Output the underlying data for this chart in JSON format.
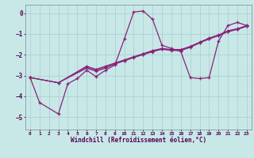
{
  "xlabel": "Windchill (Refroidissement éolien,°C)",
  "bg_color": "#c8e8e8",
  "grid_color": "#a8cccc",
  "line_color": "#882277",
  "xlim": [
    -0.5,
    23.5
  ],
  "ylim": [
    -5.6,
    0.4
  ],
  "yticks": [
    0,
    -1,
    -2,
    -3,
    -4,
    -5
  ],
  "xticks": [
    0,
    1,
    2,
    3,
    4,
    5,
    6,
    7,
    8,
    9,
    10,
    11,
    12,
    13,
    14,
    15,
    16,
    17,
    18,
    19,
    20,
    21,
    22,
    23
  ],
  "line1_x": [
    0,
    1,
    3,
    4,
    5,
    6,
    7,
    8,
    9,
    10,
    11,
    12,
    13,
    14,
    15,
    16,
    17,
    18,
    19,
    20,
    21,
    22,
    23
  ],
  "line1_y": [
    -3.1,
    -4.3,
    -4.85,
    -3.4,
    -3.15,
    -2.75,
    -3.05,
    -2.75,
    -2.5,
    -1.25,
    0.05,
    0.1,
    -0.3,
    -1.55,
    -1.7,
    -1.85,
    -3.1,
    -3.15,
    -3.1,
    -1.35,
    -0.6,
    -0.45,
    -0.6
  ],
  "line2_x": [
    0,
    3,
    6,
    7,
    8,
    9,
    10,
    11,
    12,
    13,
    14,
    15,
    16,
    17,
    18,
    19,
    20,
    21,
    22,
    23
  ],
  "line2_y": [
    -3.1,
    -3.35,
    -2.55,
    -2.7,
    -2.55,
    -2.4,
    -2.25,
    -2.1,
    -1.95,
    -1.8,
    -1.7,
    -1.75,
    -1.75,
    -1.6,
    -1.4,
    -1.2,
    -1.05,
    -0.85,
    -0.75,
    -0.6
  ],
  "line3_x": [
    0,
    3,
    6,
    7,
    8,
    9,
    10,
    11,
    12,
    13,
    14,
    15,
    16,
    17,
    18,
    19,
    20,
    21,
    22,
    23
  ],
  "line3_y": [
    -3.1,
    -3.35,
    -2.6,
    -2.75,
    -2.6,
    -2.42,
    -2.28,
    -2.12,
    -1.98,
    -1.83,
    -1.72,
    -1.78,
    -1.78,
    -1.62,
    -1.42,
    -1.22,
    -1.07,
    -0.88,
    -0.77,
    -0.62
  ],
  "line4_x": [
    0,
    3,
    6,
    7,
    8,
    9,
    10,
    11,
    12,
    13,
    14,
    15,
    16,
    17,
    18,
    19,
    20,
    21,
    22,
    23
  ],
  "line4_y": [
    -3.1,
    -3.35,
    -2.65,
    -2.8,
    -2.65,
    -2.45,
    -2.3,
    -2.14,
    -2.0,
    -1.86,
    -1.74,
    -1.8,
    -1.8,
    -1.65,
    -1.44,
    -1.25,
    -1.09,
    -0.9,
    -0.79,
    -0.64
  ]
}
